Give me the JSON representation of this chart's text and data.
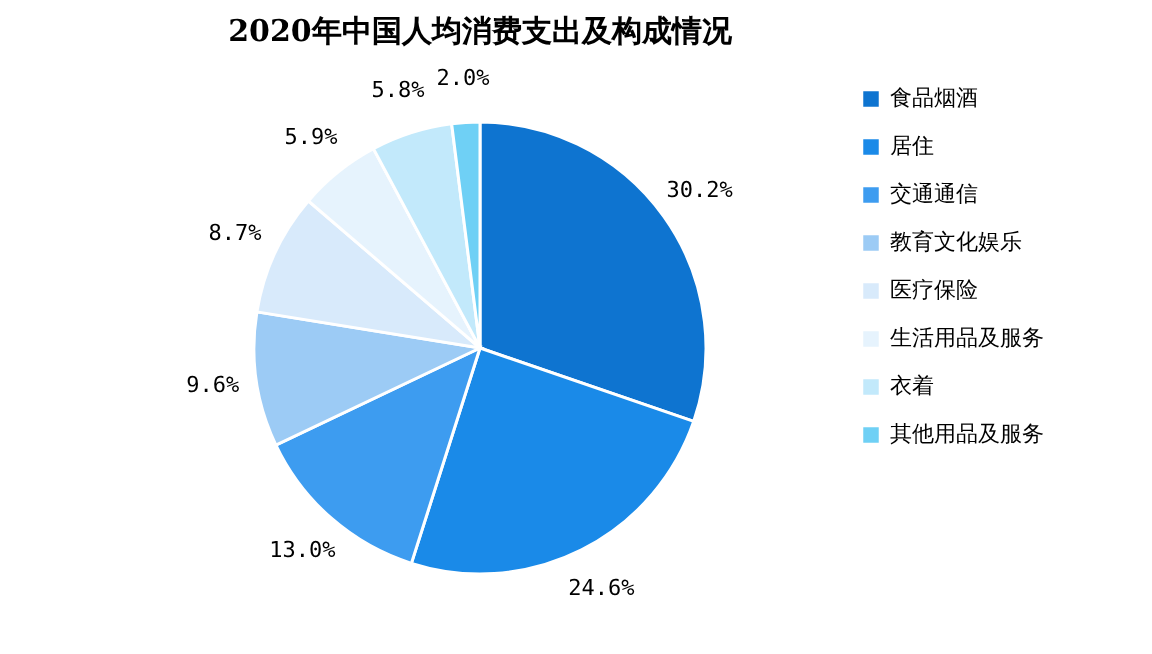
{
  "chart_data": {
    "type": "pie",
    "title": "2020年中国人均消费支出及构成情况",
    "categories": [
      "食品烟酒",
      "居住",
      "交通通信",
      "教育文化娱乐",
      "医疗保险",
      "生活用品及服务",
      "衣着",
      "其他用品及服务"
    ],
    "values": [
      30.2,
      24.6,
      13.0,
      9.6,
      8.7,
      5.9,
      5.8,
      2.0
    ],
    "colors": [
      "#0e74d0",
      "#1a8ae8",
      "#3d9cf0",
      "#9ccbf5",
      "#d8eafb",
      "#e6f3fd",
      "#c2e9fb",
      "#6fd0f5"
    ],
    "value_labels": [
      "30.2%",
      "24.6%",
      "13.0%",
      "9.6%",
      "8.7%",
      "5.9%",
      "5.8%",
      "2.0%"
    ],
    "legend": "right"
  }
}
